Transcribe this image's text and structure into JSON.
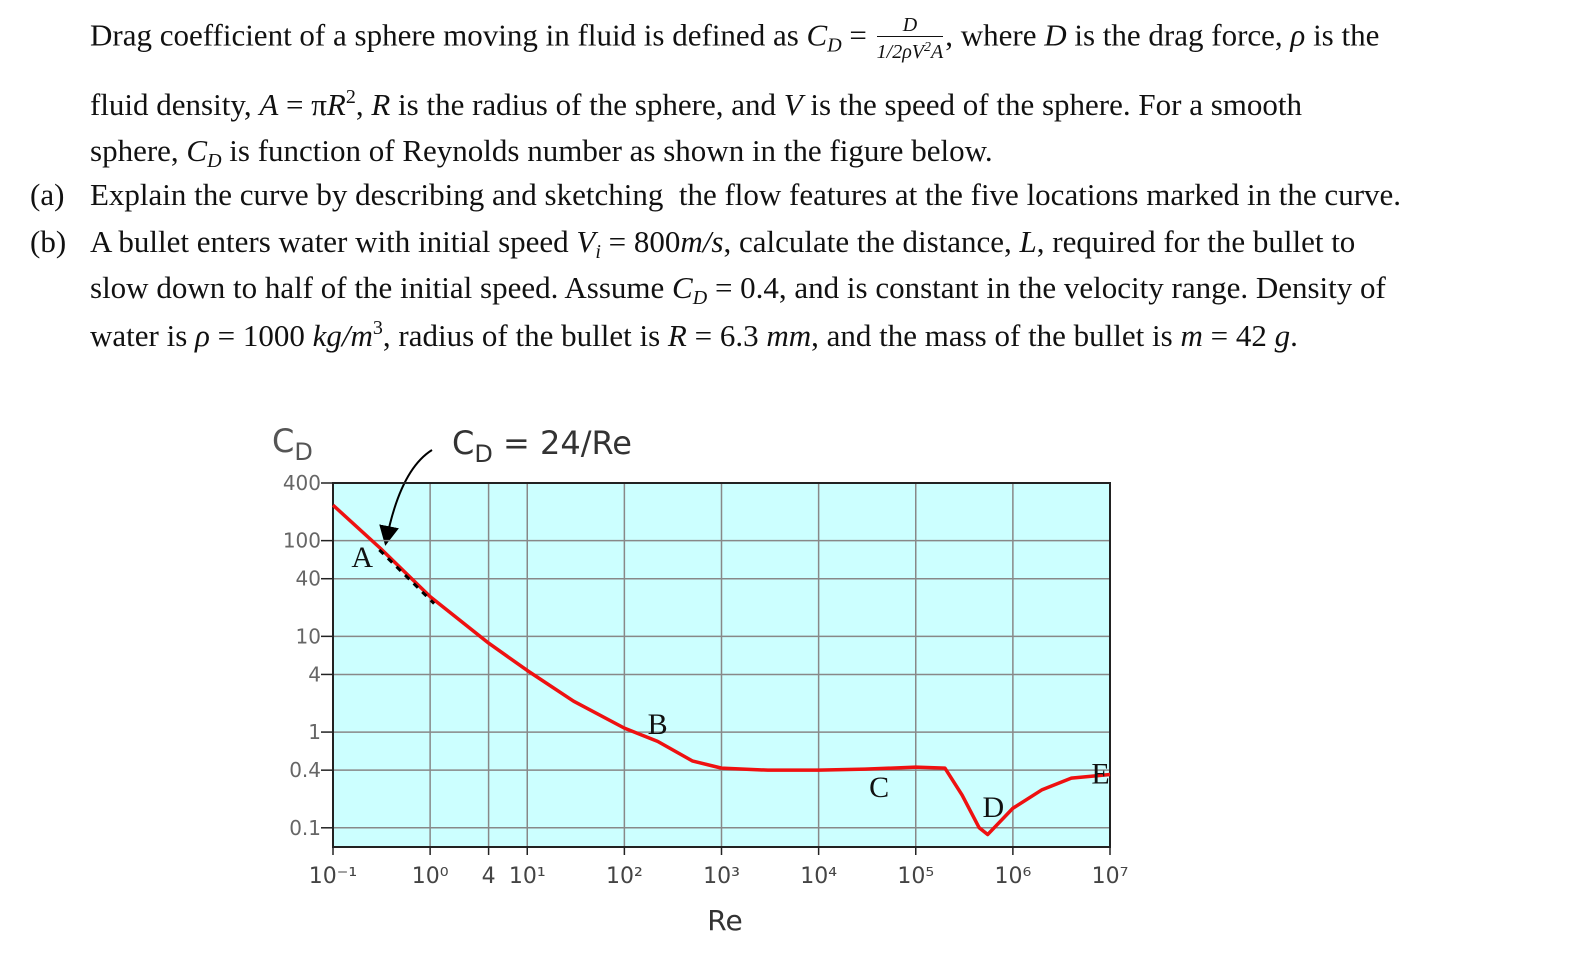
{
  "intro": [
    "Drag coefficient of a sphere moving in fluid is defined as ",
    "C",
    "D",
    " = ",
    "D",
    "1",
    "2",
    "ρV",
    "2",
    "A",
    ", where ",
    "D",
    " is the drag force, ",
    "ρ",
    " is the",
    "fluid density, ",
    "A",
    " = π",
    "R",
    "2",
    ", ",
    "R",
    " is the radius of the sphere, and ",
    "V",
    " is the speed of the sphere. For a smooth",
    "sphere, ",
    "C",
    "D",
    " is function of Reynolds number as shown in the figure below."
  ],
  "items": [
    {
      "label": "(a)",
      "text": "Explain the curve by describing and sketching  the flow features at the five locations marked in the curve."
    },
    {
      "label": "(b)",
      "text": [
        "A bullet enters water with initial speed ",
        "V",
        "i",
        " = 800",
        "m/s",
        ", calculate the distance, ",
        "L",
        ", required for the bullet to",
        "slow down to half of the initial speed. Assume ",
        "C",
        "D",
        " = 0.4, and is constant in the velocity range. Density of",
        "water is ",
        "ρ",
        " = 1000 ",
        "kg/m",
        "3",
        ", radius of the bullet is ",
        "R",
        " = 6.3 ",
        "mm",
        ", and the mass of the bullet is ",
        "m",
        " = 42 ",
        "g",
        "."
      ]
    }
  ],
  "chart_data": {
    "type": "line",
    "ylabel": [
      "C",
      "D"
    ],
    "xlabel": "Re",
    "annotation": [
      "C",
      "D",
      " = 24/Re"
    ],
    "log_x": true,
    "log_y": true,
    "grid": true,
    "background": "#ccffff",
    "xlim": [
      0.1,
      10000000
    ],
    "ylim": [
      0.063,
      400
    ],
    "xticks": [
      {
        "value": 0.1,
        "label": "10⁻¹"
      },
      {
        "value": 1,
        "label": "10⁰"
      },
      4,
      {
        "value": 10,
        "label": "10¹"
      },
      {
        "value": 100,
        "label": "10²"
      },
      {
        "value": 1000,
        "label": "10³"
      },
      {
        "value": 10000,
        "label": "10⁴"
      },
      {
        "value": 100000,
        "label": "10⁵"
      },
      {
        "value": 1000000,
        "label": "10⁶"
      },
      {
        "value": 10000000,
        "label": "10⁷"
      }
    ],
    "yticks": [
      400,
      100,
      40,
      10,
      4,
      1,
      0.4,
      0.1
    ],
    "series": [
      {
        "color": "#ee1111",
        "x": [
          0.1,
          0.3,
          1,
          4,
          10,
          30,
          100,
          220,
          500,
          1000,
          3000,
          10000,
          30000,
          100000,
          200000,
          300000,
          450000,
          550000,
          1000000,
          2000000,
          4000000,
          10000000
        ],
        "values": [
          235,
          85,
          26,
          8.5,
          4.4,
          2.1,
          1.1,
          0.8,
          0.5,
          0.42,
          0.4,
          0.4,
          0.41,
          0.43,
          0.42,
          0.22,
          0.1,
          0.085,
          0.16,
          0.25,
          0.33,
          0.36
        ]
      },
      {
        "color": "#000000",
        "dash": true,
        "x": [
          0.3,
          1.1
        ],
        "values": [
          80,
          22
        ]
      }
    ],
    "point_labels": [
      {
        "text": "A",
        "x": 0.2,
        "y": 53
      },
      {
        "text": "B",
        "x": 220,
        "y": 0.95
      },
      {
        "text": "C",
        "x": 42000,
        "y": 0.21
      },
      {
        "text": "D",
        "x": 630000,
        "y": 0.13
      },
      {
        "text": "E",
        "x": 8000000,
        "y": 0.29
      }
    ]
  }
}
